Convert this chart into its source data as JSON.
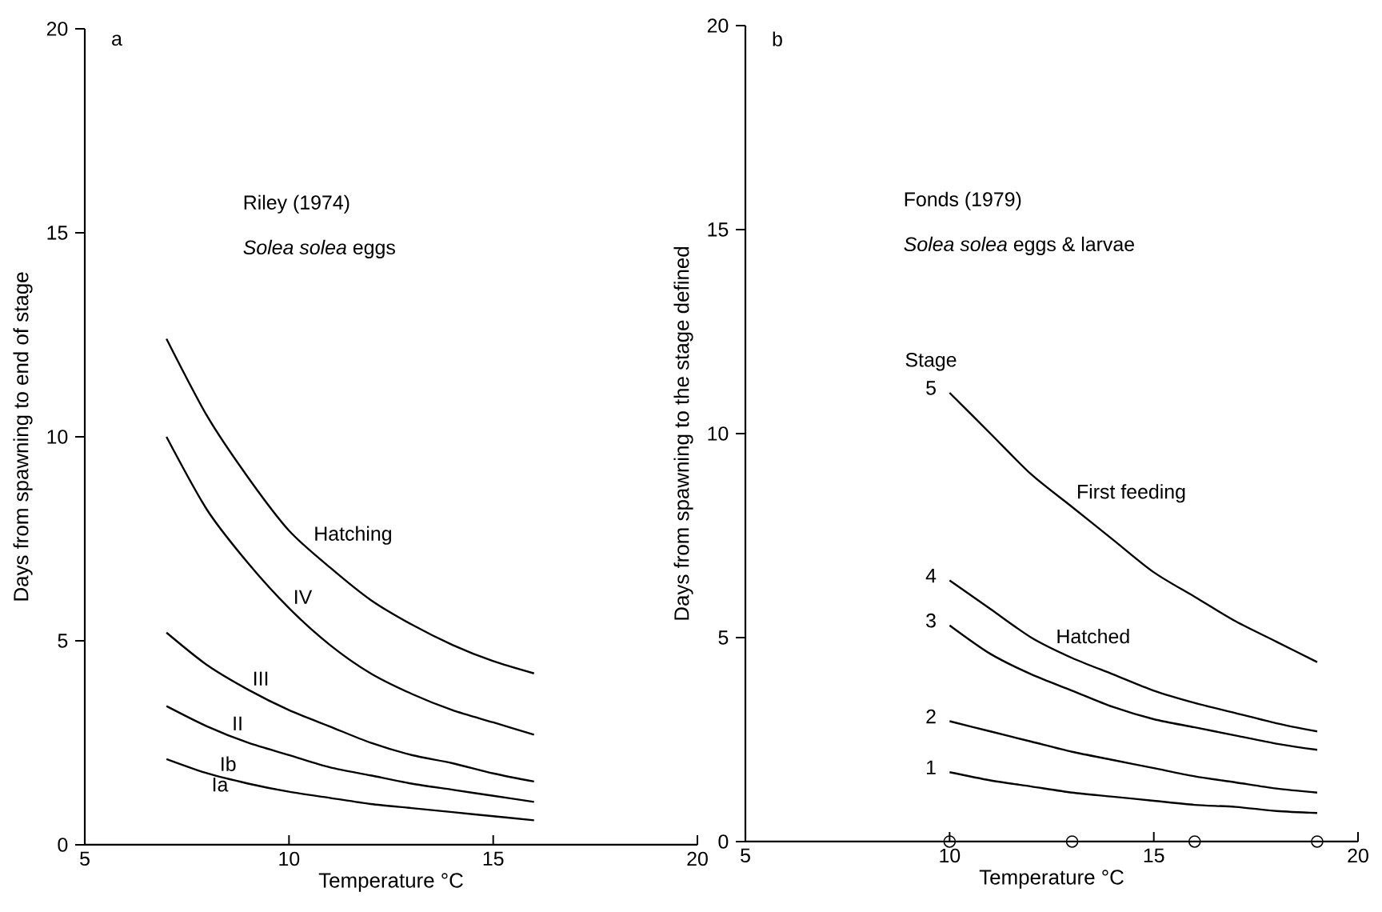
{
  "chart_data": [
    {
      "type": "line",
      "xlabel": "Temperature °C",
      "ylabel": "Days from spawning to end of stage",
      "xlim": [
        5,
        20
      ],
      "ylim": [
        0,
        20
      ],
      "xticks": [
        5,
        10,
        15,
        20
      ],
      "yticks": [
        0,
        5,
        10,
        15,
        20
      ],
      "marker": "none",
      "line_style": "solid",
      "x": [
        7,
        8,
        9,
        10,
        11,
        12,
        13,
        14,
        15,
        16
      ],
      "series": [
        {
          "color": "#000000",
          "values": [
            12.4,
            10.5,
            9.0,
            7.7,
            6.8,
            6.0,
            5.4,
            4.9,
            4.5,
            4.2
          ]
        },
        {
          "color": "#000000",
          "values": [
            10.0,
            8.2,
            6.9,
            5.8,
            4.9,
            4.2,
            3.7,
            3.3,
            3.0,
            2.7
          ]
        },
        {
          "color": "#000000",
          "values": [
            5.2,
            4.4,
            3.8,
            3.3,
            2.9,
            2.5,
            2.2,
            2.0,
            1.75,
            1.55
          ]
        },
        {
          "color": "#000000",
          "values": [
            3.4,
            2.9,
            2.5,
            2.2,
            1.9,
            1.7,
            1.5,
            1.35,
            1.2,
            1.05
          ]
        },
        {
          "color": "#000000",
          "values": [
            2.1,
            1.75,
            1.5,
            1.3,
            1.15,
            1.0,
            0.9,
            0.8,
            0.7,
            0.6
          ]
        }
      ],
      "annotations": [
        "a",
        "Riley (1974)",
        "*Solea solea* eggs",
        {
          "text": "Hatching",
          "x": 10.5,
          "y": 7.25
        },
        {
          "text": "IV",
          "x": 10,
          "y": 5.8
        },
        {
          "text": "III",
          "x": 9,
          "y": 3.8
        },
        {
          "text": "II",
          "x": 8.5,
          "y": 2.7
        },
        {
          "text": "Ib",
          "x": 8.2,
          "y": 1.7
        },
        {
          "text": "Ia",
          "x": 8,
          "y": 1.75
        }
      ]
    },
    {
      "type": "line",
      "xlabel": "Temperature °C",
      "ylabel": "Days from spawning to the stage defined",
      "xlim": [
        5,
        20
      ],
      "ylim": [
        0,
        20
      ],
      "xticks": [
        5,
        10,
        15,
        20
      ],
      "yticks": [
        0,
        5,
        10,
        15,
        20
      ],
      "marker": "none",
      "line_style": "solid",
      "x": [
        10,
        11,
        12,
        13,
        14,
        15,
        16,
        17,
        18,
        19
      ],
      "series": [
        {
          "name": "5",
          "color": "#000000",
          "values": [
            11.0,
            10.0,
            9.0,
            8.2,
            7.4,
            6.6,
            6.0,
            5.4,
            4.9,
            4.4
          ]
        },
        {
          "name": "4",
          "color": "#000000",
          "values": [
            6.4,
            5.7,
            5.0,
            4.5,
            4.1,
            3.7,
            3.4,
            3.15,
            2.9,
            2.7
          ]
        },
        {
          "name": "3",
          "color": "#000000",
          "values": [
            5.3,
            4.6,
            4.1,
            3.7,
            3.3,
            3.0,
            2.8,
            2.6,
            2.4,
            2.25
          ]
        },
        {
          "name": "2",
          "color": "#000000",
          "values": [
            2.95,
            2.7,
            2.45,
            2.2,
            2.0,
            1.8,
            1.6,
            1.45,
            1.3,
            1.2
          ]
        },
        {
          "name": "1",
          "color": "#000000",
          "values": [
            1.7,
            1.5,
            1.35,
            1.2,
            1.1,
            1.0,
            0.9,
            0.85,
            0.75,
            0.7
          ]
        },
        {
          "type": "scatter",
          "marker": "circle",
          "color": "#000000",
          "x": [
            10,
            13,
            16,
            19
          ],
          "values": [
            0,
            0,
            0,
            0
          ]
        }
      ],
      "legend_title": "Stage",
      "annotations": [
        "b",
        "Fonds (1979)",
        "*Solea solea* eggs & larvae",
        {
          "text": "First feeding",
          "x": 13,
          "y": 8.2
        },
        {
          "text": "Hatched",
          "x": 12.5,
          "y": 4.75
        }
      ]
    }
  ]
}
